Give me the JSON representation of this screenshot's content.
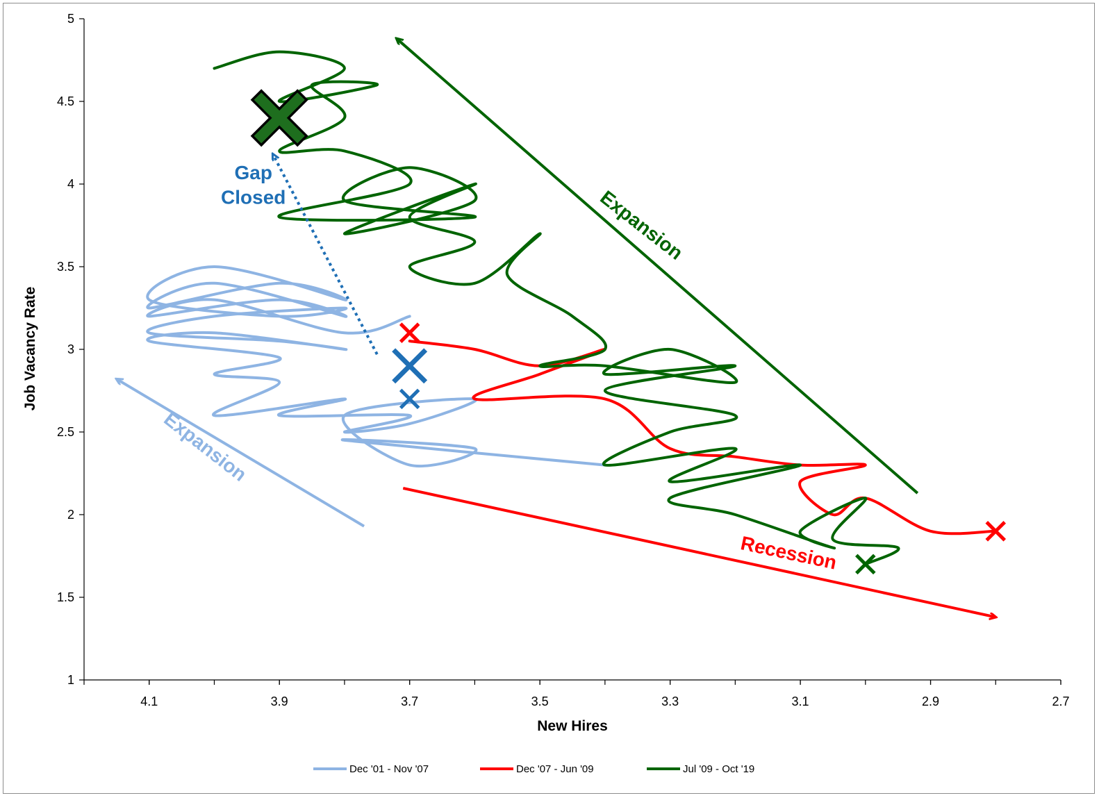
{
  "chart_data": {
    "type": "line",
    "xlabel": "New Hires",
    "ylabel": "Job Vacancy  Rate",
    "xlim": [
      4.2,
      2.7
    ],
    "ylim": [
      1,
      5
    ],
    "x_reversed": true,
    "xticks": [
      4.1,
      3.9,
      3.7,
      3.5,
      3.3,
      3.1,
      2.9,
      2.7
    ],
    "xtick_labels": [
      "4.1",
      "3.9",
      "3.7",
      "3.5",
      "3.3",
      "3.1",
      "2.9",
      "2.7"
    ],
    "yticks": [
      1,
      1.5,
      2,
      2.5,
      3,
      3.5,
      4,
      4.5,
      5
    ],
    "ytick_labels": [
      "1",
      "1.5",
      "2",
      "2.5",
      "3",
      "3.5",
      "4",
      "4.5",
      "5"
    ],
    "grid": false,
    "legend_position": "bottom",
    "series": [
      {
        "name": "Dec '01 - Nov '07",
        "color": "#8eb4e3",
        "points": [
          [
            3.7,
            3.2
          ],
          [
            3.8,
            3.1
          ],
          [
            4.0,
            3.3
          ],
          [
            4.1,
            3.2
          ],
          [
            3.9,
            3.3
          ],
          [
            3.8,
            3.2
          ],
          [
            4.0,
            3.4
          ],
          [
            4.1,
            3.25
          ],
          [
            3.9,
            3.4
          ],
          [
            3.8,
            3.3
          ],
          [
            4.0,
            3.5
          ],
          [
            4.1,
            3.3
          ],
          [
            3.9,
            3.2
          ],
          [
            3.8,
            3.25
          ],
          [
            4.0,
            3.2
          ],
          [
            4.1,
            3.1
          ],
          [
            3.9,
            3.05
          ],
          [
            3.8,
            3.0
          ],
          [
            4.0,
            3.1
          ],
          [
            4.1,
            3.05
          ],
          [
            3.9,
            2.95
          ],
          [
            4.0,
            2.85
          ],
          [
            3.9,
            2.8
          ],
          [
            4.0,
            2.6
          ],
          [
            3.8,
            2.7
          ],
          [
            3.9,
            2.6
          ],
          [
            3.7,
            2.6
          ],
          [
            3.8,
            2.5
          ],
          [
            3.7,
            2.55
          ],
          [
            3.6,
            2.7
          ],
          [
            3.8,
            2.6
          ],
          [
            3.7,
            2.3
          ],
          [
            3.6,
            2.4
          ],
          [
            3.8,
            2.45
          ],
          [
            3.4,
            2.3
          ]
        ]
      },
      {
        "name": "Dec '07 - Jun '09",
        "color": "#ff0000",
        "points": [
          [
            3.7,
            3.05
          ],
          [
            3.6,
            3.0
          ],
          [
            3.5,
            2.9
          ],
          [
            3.4,
            3.0
          ],
          [
            3.5,
            2.85
          ],
          [
            3.6,
            2.7
          ],
          [
            3.4,
            2.7
          ],
          [
            3.3,
            2.4
          ],
          [
            3.2,
            2.35
          ],
          [
            3.1,
            2.3
          ],
          [
            3.0,
            2.3
          ],
          [
            3.1,
            2.2
          ],
          [
            3.05,
            2.0
          ],
          [
            3.0,
            2.1
          ],
          [
            2.9,
            1.9
          ],
          [
            2.8,
            1.9
          ]
        ]
      },
      {
        "name": "Jul '09 - Oct '19",
        "color": "#006400",
        "points": [
          [
            3.0,
            1.7
          ],
          [
            2.95,
            1.8
          ],
          [
            3.05,
            1.85
          ],
          [
            3.0,
            2.1
          ],
          [
            3.1,
            1.9
          ],
          [
            3.05,
            1.8
          ],
          [
            3.2,
            2.0
          ],
          [
            3.3,
            2.1
          ],
          [
            3.1,
            2.3
          ],
          [
            3.3,
            2.2
          ],
          [
            3.2,
            2.4
          ],
          [
            3.4,
            2.3
          ],
          [
            3.3,
            2.5
          ],
          [
            3.2,
            2.6
          ],
          [
            3.4,
            2.75
          ],
          [
            3.2,
            2.9
          ],
          [
            3.4,
            2.85
          ],
          [
            3.3,
            3.0
          ],
          [
            3.2,
            2.8
          ],
          [
            3.4,
            2.9
          ],
          [
            3.5,
            2.9
          ],
          [
            3.4,
            3.0
          ],
          [
            3.45,
            3.2
          ],
          [
            3.55,
            3.45
          ],
          [
            3.5,
            3.7
          ],
          [
            3.6,
            3.4
          ],
          [
            3.7,
            3.5
          ],
          [
            3.6,
            3.65
          ],
          [
            3.7,
            3.8
          ],
          [
            3.6,
            4.0
          ],
          [
            3.8,
            3.7
          ],
          [
            3.6,
            3.9
          ],
          [
            3.7,
            4.1
          ],
          [
            3.8,
            3.9
          ],
          [
            3.6,
            3.8
          ],
          [
            3.9,
            3.8
          ],
          [
            3.7,
            4.0
          ],
          [
            3.8,
            4.2
          ],
          [
            3.9,
            4.2
          ],
          [
            3.8,
            4.4
          ],
          [
            3.85,
            4.6
          ],
          [
            3.75,
            4.6
          ],
          [
            3.9,
            4.5
          ],
          [
            3.8,
            4.7
          ],
          [
            3.9,
            4.8
          ],
          [
            4.0,
            4.7
          ]
        ]
      }
    ],
    "markers": [
      {
        "x": 3.7,
        "y": 3.1,
        "color": "#ff0000",
        "style": "x"
      },
      {
        "x": 3.7,
        "y": 2.9,
        "color": "#1f6fb5",
        "style": "x-large"
      },
      {
        "x": 3.7,
        "y": 2.7,
        "color": "#1f6fb5",
        "style": "x"
      },
      {
        "x": 3.9,
        "y": 4.4,
        "color": "#1e6e1e",
        "style": "x-outlined"
      },
      {
        "x": 3.0,
        "y": 1.7,
        "color": "#006400",
        "style": "x"
      },
      {
        "x": 2.8,
        "y": 1.9,
        "color": "#ff0000",
        "style": "x"
      }
    ],
    "trend_arrows": [
      {
        "from": [
          3.77,
          1.93
        ],
        "to": [
          4.15,
          2.82
        ],
        "color": "#8eb4e3",
        "dashed": false
      },
      {
        "from": [
          2.92,
          2.13
        ],
        "to": [
          3.72,
          4.88
        ],
        "color": "#006400",
        "dashed": false
      },
      {
        "from": [
          3.71,
          2.16
        ],
        "to": [
          2.8,
          1.38
        ],
        "color": "#ff0000",
        "dashed": false
      },
      {
        "from": [
          3.75,
          2.97
        ],
        "to": [
          3.91,
          4.18
        ],
        "color": "#1f6fb5",
        "dashed": true
      }
    ],
    "annotations": [
      {
        "text": "Expansion",
        "color": "#8eb4e3",
        "x": 4.02,
        "y": 2.38,
        "angle": 38
      },
      {
        "text": "Expansion",
        "color": "#006400",
        "x": 3.35,
        "y": 3.72,
        "angle": 38
      },
      {
        "text": "Recession",
        "color": "#ff0000",
        "x": 3.12,
        "y": 1.73,
        "angle": 12
      },
      {
        "text": "Gap",
        "color": "#1f6fb5",
        "x": 3.94,
        "y": 4.03,
        "angle": 0
      },
      {
        "text": "Closed",
        "color": "#1f6fb5",
        "x": 3.94,
        "y": 3.88,
        "angle": 0
      }
    ]
  }
}
